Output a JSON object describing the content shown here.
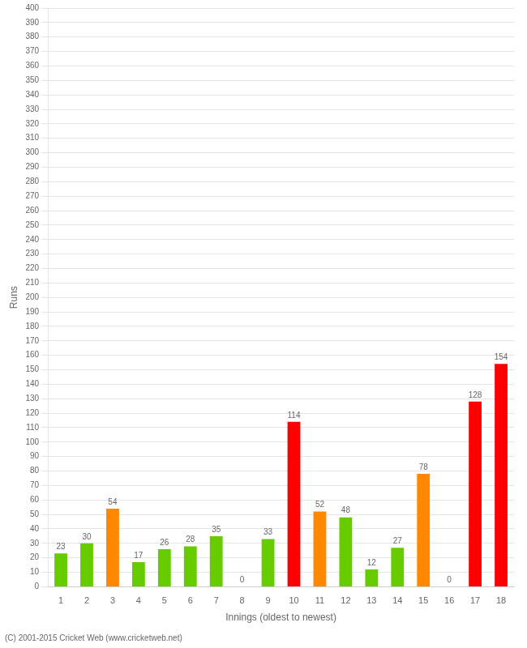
{
  "chart_data": {
    "type": "bar",
    "categories": [
      "1",
      "2",
      "3",
      "4",
      "5",
      "6",
      "7",
      "8",
      "9",
      "10",
      "11",
      "12",
      "13",
      "14",
      "15",
      "16",
      "17",
      "18"
    ],
    "values": [
      23,
      30,
      54,
      17,
      26,
      28,
      35,
      0,
      33,
      114,
      52,
      48,
      12,
      27,
      78,
      0,
      128,
      154
    ],
    "colors": [
      "#66cc00",
      "#66cc00",
      "#ff8800",
      "#66cc00",
      "#66cc00",
      "#66cc00",
      "#66cc00",
      "#66cc00",
      "#66cc00",
      "#ff0000",
      "#ff8800",
      "#66cc00",
      "#66cc00",
      "#66cc00",
      "#ff8800",
      "#66cc00",
      "#ff0000",
      "#ff0000"
    ],
    "xlabel": "Innings (oldest to newest)",
    "ylabel": "Runs",
    "ylim": [
      0,
      400
    ],
    "yticks": [
      0,
      10,
      20,
      30,
      40,
      50,
      60,
      70,
      80,
      90,
      100,
      110,
      120,
      130,
      140,
      150,
      160,
      170,
      180,
      190,
      200,
      210,
      220,
      230,
      240,
      250,
      260,
      270,
      280,
      290,
      300,
      310,
      320,
      330,
      340,
      350,
      360,
      370,
      380,
      390,
      400
    ],
    "grid": true,
    "data_labels": true,
    "annotations": [
      "(C) 2001-2015 Cricket Web (www.cricketweb.net)"
    ]
  }
}
